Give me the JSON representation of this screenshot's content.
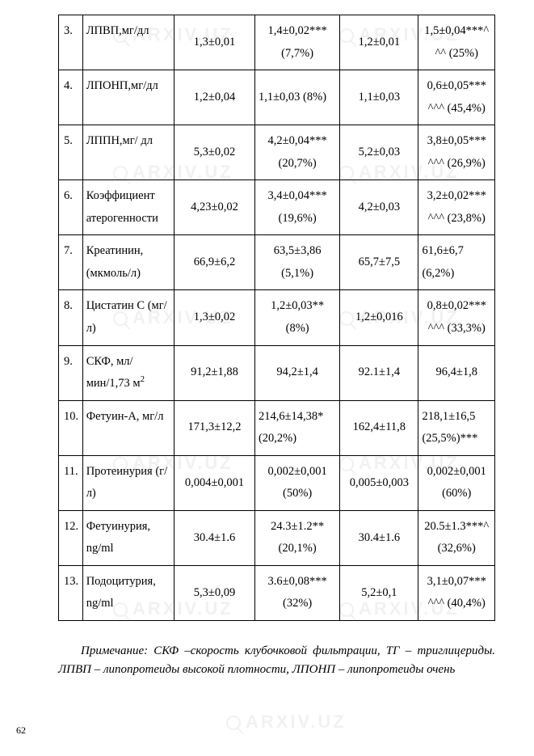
{
  "table": {
    "col_widths_pct": [
      5.5,
      21,
      18.5,
      19.5,
      18,
      17.5
    ],
    "border_color": "#000000",
    "font_size_pt": 11,
    "line_height": 1.9,
    "rows": [
      {
        "n": "3.",
        "param": "ЛПВП,мг/дл",
        "c2": "1,3±0,01",
        "c3": "1,4±0,02*** (7,7%)",
        "c4": "1,2±0,01",
        "c5": "1,5±0,04***^^^ (25%)",
        "c5_align": "center"
      },
      {
        "n": "4.",
        "param": "ЛПОНП,мг/дл",
        "c2": "1,2±0,04",
        "c3": "1,1±0,03 (8%)",
        "c3_align": "left",
        "c4": "1,1±0,03",
        "c5": "0,6±0,05*** ^^^ (45,4%)",
        "c5_align": "center"
      },
      {
        "n": "5.",
        "param": "ЛППН,мг/ дл",
        "c2": "5,3±0,02",
        "c3": "4,2±0,04*** (20,7%)",
        "c4": "5,2±0,03",
        "c5": "3,8±0,05*** ^^^ (26,9%)",
        "c5_align": "center"
      },
      {
        "n": "6.",
        "param": "Коэффициент атерогенности",
        "c2": "4,23±0,02",
        "c3": "3,4±0,04*** (19,6%)",
        "c4": "4,2±0,03",
        "c5": "3,2±0,02*** ^^^ (23,8%)",
        "c5_align": "center"
      },
      {
        "n": "7.",
        "param": "Креатинин, (мкмоль/л)",
        "c2": "66,9±6,2",
        "c3": "63,5±3,86 (5,1%)",
        "c4": "65,7±7,5",
        "c5": "61,6±6,7 (6,2%)",
        "c5_align": "left"
      },
      {
        "n": "8.",
        "param": "Цистатин С (мг/л)",
        "c2": "1,3±0,02",
        "c3": "1,2±0,03** (8%)",
        "c4": "1,2±0,016",
        "c5": "0,8±0,02*** ^^^ (33,3%)",
        "c5_align": "center"
      },
      {
        "n": "9.",
        "param": "СКФ, мл/мин/1,73 м",
        "param_sup": "2",
        "c2": "91,2±1,88",
        "c3": "94,2±1,4",
        "c4": "92.1±1,4",
        "c5": "96,4±1,8",
        "c5_align": "center"
      },
      {
        "n": "10.",
        "param": "Фетуин-А, мг/л",
        "c2": "171,3±12,2",
        "c3": "214,6±14,38* (20,2%)",
        "c3_align": "left",
        "c4": "162,4±11,8",
        "c5": "218,1±16,5 (25,5%)***",
        "c5_align": "left"
      },
      {
        "n": "11.",
        "param": "Протеинурия (г/л)",
        "c2": "0,004±0,001",
        "c3": "0,002±0,001 (50%)",
        "c4": "0,005±0,003",
        "c5": "0,002±0,001 (60%)",
        "c5_align": "center"
      },
      {
        "n": "12.",
        "param": "Фетуинурия, ng/ml",
        "c2": "30.4±1.6",
        "c3": "24.3±1.2** (20,1%)",
        "c4": "30.4±1.6",
        "c5": "20.5±1.3***^ (32,6%)",
        "c5_align": "center"
      },
      {
        "n": "13.",
        "param": "Подоцитурия, ng/ml",
        "c2": "5,3±0,09",
        "c3": "3.6±0,08*** (32%)",
        "c4": "5,2±0,1",
        "c5": "3,1±0,07*** ^^^ (40,4%)",
        "c5_align": "center"
      }
    ]
  },
  "note": "Примечание: СКФ –скорость клубочковой фильтрации, ТГ – триглицериды. ЛПВП – липопротеиды высокой плотности, ЛПОНП – липопротеиды очень",
  "page_number": "62",
  "watermark_text": "ARXIV.UZ",
  "colors": {
    "background": "#ffffff",
    "text": "#000000",
    "watermark": "rgba(0,0,0,0.055)"
  }
}
